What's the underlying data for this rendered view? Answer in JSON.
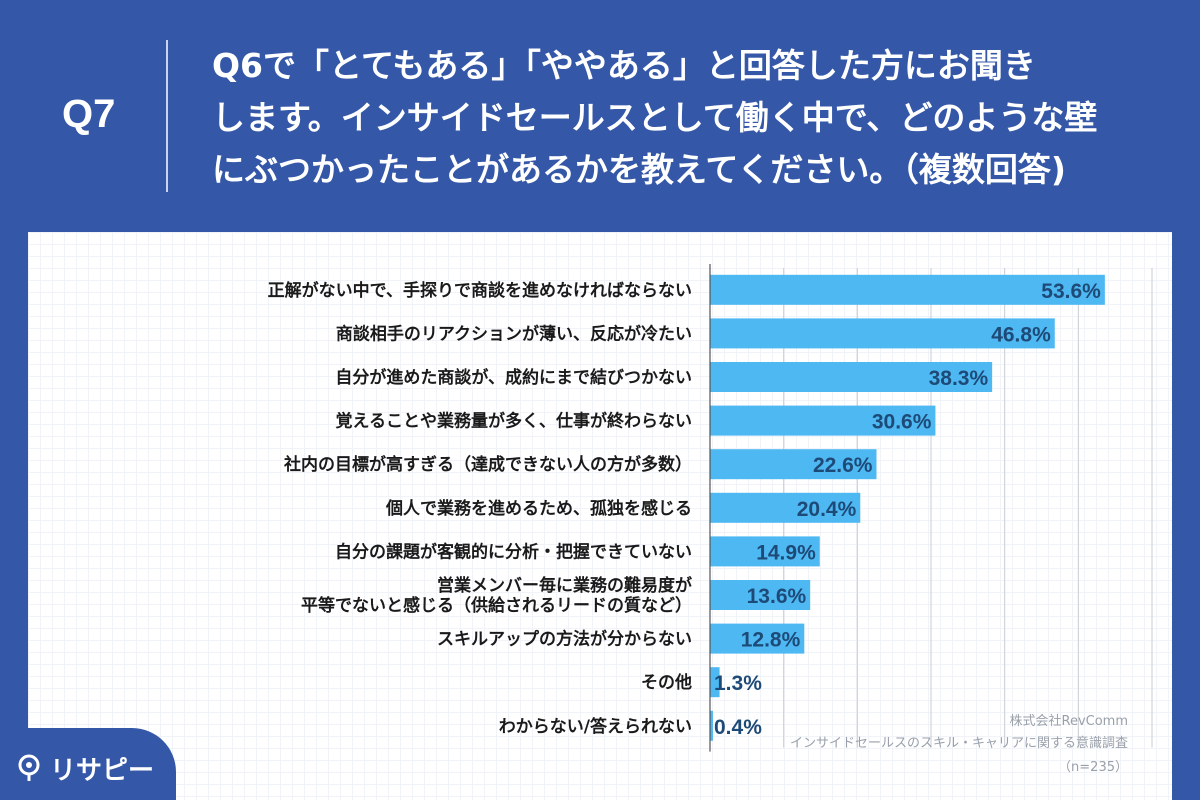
{
  "header": {
    "qnum": "Q7",
    "question_lines": [
      "Q6で「とてもある」「ややある」と回答した方にお聞き",
      "します。インサイドセールスとして働く中で、どのような壁",
      "にぶつかったことがあるかを教えてください。（複数回答)"
    ]
  },
  "chart_data": {
    "type": "bar",
    "orientation": "horizontal",
    "categories": [
      [
        "正解がない中で、手探りで商談を進めなければならない"
      ],
      [
        "商談相手のリアクションが薄い、反応が冷たい"
      ],
      [
        "自分が進めた商談が、成約にまで結びつかない"
      ],
      [
        "覚えることや業務量が多く、仕事が終わらない"
      ],
      [
        "社内の目標が高すぎる（達成できない人の方が多数）"
      ],
      [
        "個人で業務を進めるため、孤独を感じる"
      ],
      [
        "自分の課題が客観的に分析・把握できていない"
      ],
      [
        "営業メンバー毎に業務の難易度が",
        "平等でないと感じる（供給されるリードの質など）"
      ],
      [
        "スキルアップの方法が分からない"
      ],
      [
        "その他"
      ],
      [
        "わからない/答えられない"
      ]
    ],
    "values": [
      53.6,
      46.8,
      38.3,
      30.6,
      22.6,
      20.4,
      14.9,
      13.6,
      12.8,
      1.3,
      0.4
    ],
    "value_labels": [
      "53.6%",
      "46.8%",
      "38.3%",
      "30.6%",
      "22.6%",
      "20.4%",
      "14.9%",
      "13.6%",
      "12.8%",
      "1.3%",
      "0.4%"
    ],
    "xlim": [
      0,
      60
    ],
    "grid": true,
    "bar_color": "#4db8f2",
    "label_color": "#1e4a78"
  },
  "source": {
    "company": "株式会社RevComm",
    "survey": "インサイドセールスのスキル・キャリアに関する意識調査",
    "n": "（n=235）"
  },
  "logo": {
    "text": "リサピー"
  },
  "colors": {
    "background": "#3457a8",
    "panel": "#ffffff"
  }
}
